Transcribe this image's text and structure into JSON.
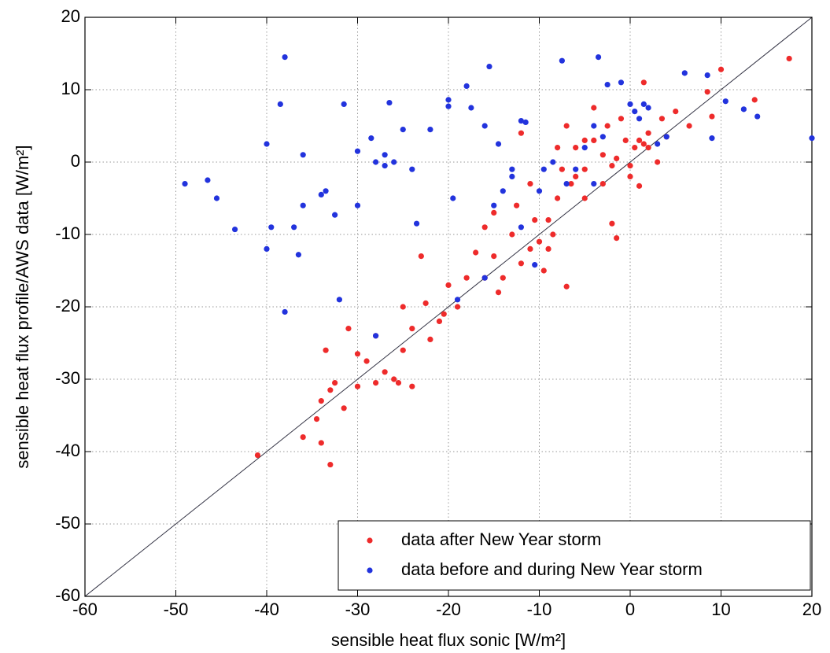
{
  "chart_data": {
    "type": "scatter",
    "xlabel": "sensible heat flux sonic [W/m²]",
    "ylabel": "sensible heat flux profile/AWS data [W/m²]",
    "xlim": [
      -60,
      20
    ],
    "ylim": [
      -60,
      20
    ],
    "xticks": [
      -60,
      -50,
      -40,
      -30,
      -20,
      -10,
      0,
      10,
      20
    ],
    "yticks": [
      -60,
      -50,
      -40,
      -30,
      -20,
      -10,
      0,
      10,
      20
    ],
    "grid": true,
    "legend": "lower right",
    "series": [
      {
        "name": "data after New Year storm",
        "color": "#ee2b2b",
        "x": [
          17.5,
          10,
          13.7,
          8.5,
          9,
          6.5,
          5,
          4,
          3.5,
          2,
          1.5,
          1.5,
          1,
          0.5,
          -0.5,
          -1,
          0,
          -2,
          -2.5,
          -3,
          -4,
          -4,
          -5,
          -5,
          -6,
          -6.5,
          -7,
          -7.5,
          -8,
          -8,
          -8.5,
          -9,
          -9.5,
          -10,
          -10.5,
          -11,
          -11,
          -12,
          -12,
          -12.5,
          -13,
          -14,
          -14.5,
          -15,
          -16,
          -17,
          -18,
          -19,
          -20,
          -20.5,
          -21,
          -22,
          -22.5,
          -23,
          -24,
          -24,
          -25,
          -25,
          -25.5,
          -26,
          -27,
          -28,
          -28,
          -29,
          -30,
          -30,
          -31,
          -31.5,
          -32.5,
          -33,
          -33,
          -33.5,
          -34,
          -34,
          -34.5,
          -36,
          -41,
          -7,
          -1.5,
          1,
          -5,
          -3,
          -2,
          -16,
          0,
          -6,
          -1.5,
          2,
          3,
          -9,
          -15
        ],
        "values": [
          14.3,
          12.8,
          8.6,
          9.7,
          6.3,
          5,
          7,
          3.5,
          6,
          4,
          2.5,
          11,
          3,
          2,
          3,
          6,
          -0.5,
          -0.5,
          5,
          1,
          7.5,
          3,
          -1,
          3,
          2,
          -3,
          5,
          -1,
          2,
          -5,
          -10,
          -12,
          -15,
          -11,
          -8,
          -12,
          -3,
          -14,
          4,
          -6,
          -10,
          -16,
          -18,
          -7,
          -9,
          -12.5,
          -16,
          -20,
          -17,
          -21,
          -22,
          -24.5,
          -19.5,
          -13,
          -23,
          -31,
          -20,
          -26,
          -30.5,
          -30,
          -29,
          -24,
          -30.5,
          -27.5,
          -26.5,
          -31,
          -23,
          -34,
          -30.5,
          -31.5,
          -41.8,
          -26,
          -33,
          -38.8,
          -35.5,
          -38,
          -40.5,
          -17.2,
          -10.5,
          -3.3,
          -5,
          -3,
          -8.5,
          -16,
          -2,
          -2,
          0.5,
          2,
          0,
          -8,
          -13
        ]
      },
      {
        "name": "data before and during New Year storm",
        "color": "#2233dd",
        "x": [
          -49,
          -46.5,
          -45.5,
          -43.5,
          -40,
          -40,
          -39.5,
          -38.5,
          -38,
          -38,
          -37,
          -36,
          -36,
          -36.5,
          -34,
          -33.5,
          -32.5,
          -32,
          -31.5,
          -30,
          -30,
          -28.5,
          -28,
          -27,
          -27,
          -26.5,
          -26,
          -25,
          -24,
          -23.5,
          -22,
          -20,
          -20,
          -19.5,
          -19,
          -18,
          -17.5,
          -16,
          -15.5,
          -15,
          -14.5,
          -14,
          -13,
          -12,
          -11.5,
          -10.5,
          -10,
          -9.5,
          -8.5,
          -7.5,
          -7,
          -6,
          -5,
          -4,
          -3.5,
          -3,
          -2.5,
          -1,
          0,
          0.5,
          1,
          2,
          1.5,
          4,
          6,
          8.5,
          9,
          10.5,
          12.5,
          14,
          20,
          -28,
          -16,
          -12,
          -13,
          -4,
          3
        ],
        "values": [
          -3,
          -2.5,
          -5,
          -9.3,
          -12,
          2.5,
          -9,
          8,
          14.5,
          -20.7,
          -9,
          -6,
          1,
          -12.8,
          -4.5,
          -4,
          -7.3,
          -19,
          8,
          1.5,
          -6,
          3.3,
          0,
          -0.5,
          1,
          8.2,
          0,
          4.5,
          -1,
          -8.5,
          4.5,
          7.7,
          8.6,
          -5,
          -19,
          10.5,
          7.5,
          5,
          13.2,
          -6,
          2.5,
          -4,
          -1,
          5.7,
          5.5,
          -14.2,
          -4,
          -1,
          0,
          14,
          -3,
          -1,
          2,
          5,
          14.5,
          3.5,
          10.7,
          11,
          8,
          7,
          6,
          7.5,
          8,
          3.5,
          12.3,
          12,
          3.3,
          8.4,
          7.3,
          6.3,
          3.3,
          -24,
          -16,
          -9,
          -2,
          -3,
          2.5
        ]
      }
    ]
  }
}
